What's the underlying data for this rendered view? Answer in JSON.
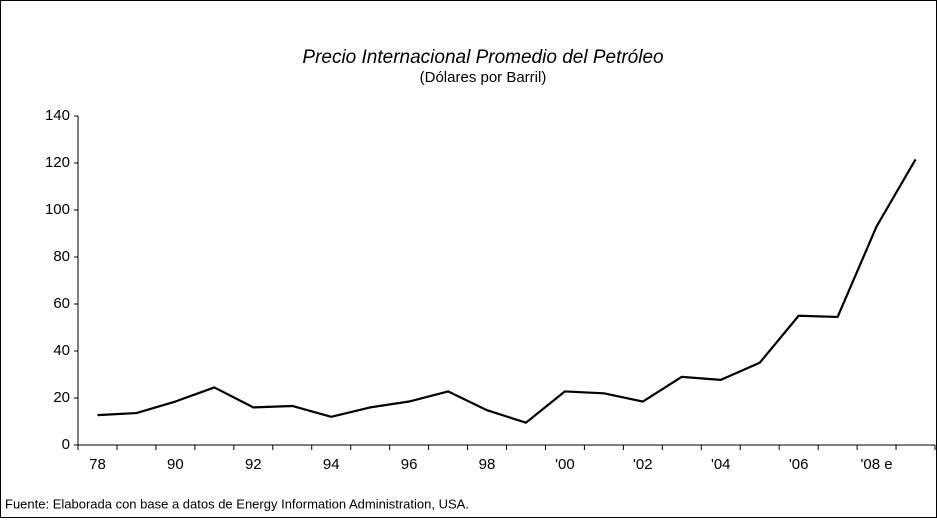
{
  "chart_data": {
    "type": "line",
    "title": "Precio Internacional Promedio del Petróleo",
    "subtitle": "(Dólares por Barril)",
    "source": "Fuente: Elaborada con base a datos de Energy Information Administration, USA.",
    "categories": [
      "78",
      null,
      "90",
      null,
      "92",
      null,
      "94",
      null,
      "96",
      null,
      "98",
      null,
      "'00",
      null,
      "'02",
      null,
      "'04",
      null,
      "'06",
      null,
      "'08 e",
      null
    ],
    "values": [
      12.7,
      13.6,
      18.5,
      24.5,
      16,
      16.6,
      12,
      16,
      18.5,
      22.8,
      14.8,
      9.5,
      22.8,
      22,
      18.5,
      29,
      27.7,
      35,
      55,
      54.5,
      93,
      121.5
    ],
    "color": "#000000",
    "ylim": [
      0,
      140
    ],
    "yticks": [
      0,
      20,
      40,
      60,
      80,
      100,
      120,
      140
    ],
    "grid": false
  }
}
